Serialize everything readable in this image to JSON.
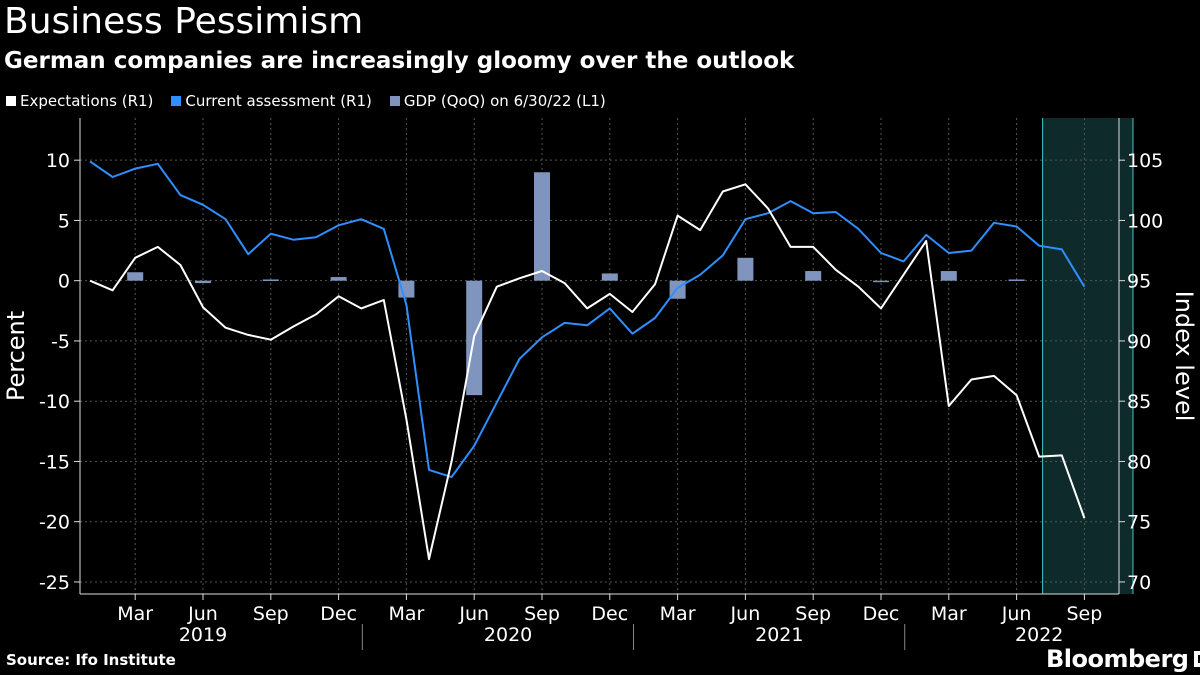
{
  "header": {
    "title": "Business Pessimism",
    "subtitle": "German companies are increasingly gloomy over the outlook"
  },
  "legend": {
    "items": [
      {
        "label": "Expectations (R1)",
        "color": "#ffffff"
      },
      {
        "label": "Current assessment (R1)",
        "color": "#2f8fff"
      },
      {
        "label": "GDP (QoQ) on 6/30/22 (L1)",
        "color": "#7f95bd"
      }
    ]
  },
  "footer": {
    "source": "Source: Ifo Institute",
    "brand": "Bloomberg"
  },
  "chart_data": {
    "type": "line",
    "title": "Business Pessimism",
    "subtitle": "German companies are increasingly gloomy over the outlook",
    "left_axis": {
      "label": "Percent",
      "ylim": [
        -26,
        13.5
      ],
      "ticks": [
        10,
        5,
        0,
        -5,
        -10,
        -15,
        -20,
        -25
      ]
    },
    "right_axis": {
      "label": "Index level",
      "ylim": [
        69,
        108.5
      ],
      "ticks": [
        105,
        100,
        95,
        90,
        85,
        80,
        75,
        70
      ]
    },
    "x": {
      "start": "2019-01",
      "months": 45,
      "tick_labels": [
        "Mar",
        "Jun",
        "Sep",
        "Dec",
        "Mar",
        "Jun",
        "Sep",
        "Dec",
        "Mar",
        "Jun",
        "Sep",
        "Dec",
        "Mar",
        "Jun",
        "Sep"
      ],
      "tick_month_index": [
        2,
        5,
        8,
        11,
        14,
        17,
        20,
        23,
        26,
        29,
        32,
        35,
        38,
        41,
        44
      ],
      "years": [
        "2019",
        "2020",
        "2021",
        "2022"
      ]
    },
    "highlight": {
      "from_month_index": 42.15,
      "to_month_index": 46.15,
      "color": "#0e2a2a",
      "edge_color": "#3fc9c4"
    },
    "series": [
      {
        "name": "Expectations",
        "axis": "right",
        "color": "#ffffff",
        "values": [
          95.0,
          94.2,
          96.9,
          97.8,
          96.3,
          92.8,
          91.1,
          90.5,
          90.1,
          91.2,
          92.2,
          93.7,
          92.7,
          93.4,
          83.5,
          71.9,
          80.0,
          90.4,
          94.5,
          95.2,
          95.8,
          94.8,
          92.7,
          93.9,
          92.4,
          94.7,
          100.4,
          99.2,
          102.4,
          103.0,
          101.0,
          97.8,
          97.8,
          95.9,
          94.5,
          92.7,
          95.5,
          98.3,
          84.6,
          86.8,
          87.1,
          85.5,
          80.4,
          80.5,
          75.3
        ]
      },
      {
        "name": "Current assessment",
        "axis": "right",
        "color": "#2f8fff",
        "values": [
          104.9,
          103.6,
          104.3,
          104.7,
          102.1,
          101.3,
          100.1,
          97.2,
          98.9,
          98.4,
          98.6,
          99.6,
          100.1,
          99.3,
          93.0,
          79.3,
          78.7,
          81.3,
          84.9,
          88.5,
          90.3,
          91.5,
          91.3,
          92.7,
          90.6,
          91.9,
          94.4,
          95.5,
          97.1,
          100.1,
          100.6,
          101.6,
          100.6,
          100.7,
          99.3,
          97.3,
          96.6,
          98.8,
          97.3,
          97.5,
          99.8,
          99.5,
          97.9,
          97.6,
          94.5
        ]
      },
      {
        "name": "GDP (QoQ) on 6/30/22",
        "axis": "left",
        "color": "#7f95bd",
        "type": "bar",
        "month_index": [
          2,
          5,
          8,
          11,
          14,
          17,
          20,
          23,
          26,
          29,
          32,
          35,
          38,
          41
        ],
        "values": [
          0.7,
          -0.2,
          0.1,
          0.3,
          -1.4,
          -9.5,
          9.0,
          0.6,
          -1.5,
          1.9,
          0.8,
          -0.1,
          0.8,
          0.1
        ]
      }
    ]
  }
}
